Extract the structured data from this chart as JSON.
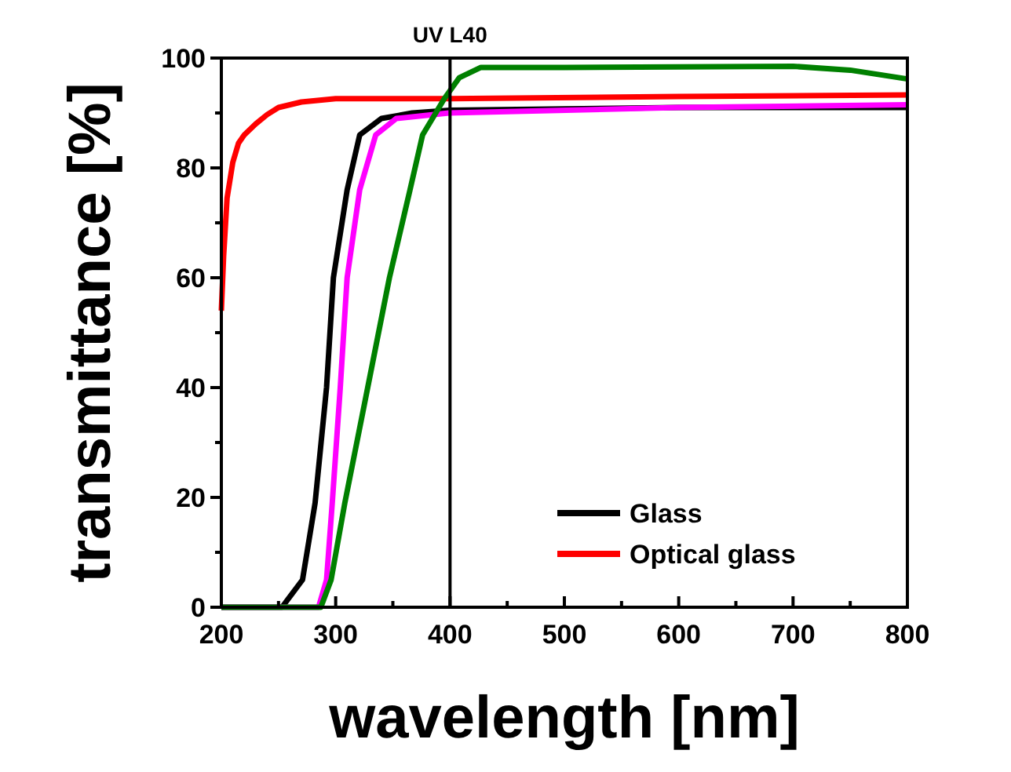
{
  "chart_data": {
    "type": "line",
    "xlabel": "wavelength [nm]",
    "ylabel": "transmittance [%]",
    "xlim": [
      200,
      800
    ],
    "ylim": [
      0,
      100
    ],
    "xticks": [
      200,
      {
        "value": 250,
        "label": null
      },
      300,
      {
        "value": 350,
        "label": null
      },
      400,
      {
        "value": 450,
        "label": null
      },
      500,
      {
        "value": 550,
        "label": null
      },
      600,
      {
        "value": 650,
        "label": null
      },
      700,
      {
        "value": 750,
        "label": null
      },
      800
    ],
    "yticks": [
      0,
      {
        "value": 10,
        "label": null
      },
      20,
      {
        "value": 30,
        "label": null
      },
      40,
      {
        "value": 50,
        "label": null
      },
      60,
      {
        "value": 70,
        "label": null
      },
      80,
      {
        "value": 90,
        "label": null
      },
      100
    ],
    "grid": false,
    "legend": "bottom right",
    "line_style": "solid",
    "ref_lines": [
      {
        "axis": "x",
        "value": 400,
        "label": "UV L40",
        "color": "#000000"
      }
    ],
    "series": [
      {
        "name": "Glass",
        "color": "#000000",
        "x": [
          200,
          253,
          271,
          282,
          292,
          298,
          310,
          321,
          340,
          367,
          400,
          600,
          800
        ],
        "values": [
          0,
          0,
          5,
          19,
          40,
          60,
          76,
          86,
          89,
          90,
          90.5,
          91,
          91
        ]
      },
      {
        "name": "Optical glass",
        "color": "#ff0000",
        "x": [
          200,
          202,
          205,
          210,
          215,
          220,
          230,
          240,
          250,
          270,
          300,
          400,
          600,
          800
        ],
        "values": [
          54,
          64,
          74.5,
          81,
          84.5,
          86,
          88,
          89.7,
          91,
          92,
          92.6,
          92.6,
          93,
          93.3
        ]
      },
      {
        "color": "#ff00ff",
        "x": [
          200,
          285,
          292,
          297,
          304,
          310,
          321,
          335,
          353,
          399,
          600,
          800
        ],
        "values": [
          0,
          0,
          5,
          19,
          40,
          60,
          76,
          86,
          89,
          90,
          91,
          91.5
        ]
      },
      {
        "color": "#008000",
        "x": [
          200,
          287,
          296,
          308,
          328,
          347,
          365,
          376,
          395,
          408,
          427,
          500,
          600,
          700,
          750,
          800
        ],
        "values": [
          0,
          0,
          5,
          19,
          40,
          60,
          76,
          86,
          92.6,
          96.4,
          98.3,
          98.3,
          98.4,
          98.5,
          97.8,
          96.2
        ]
      }
    ]
  }
}
